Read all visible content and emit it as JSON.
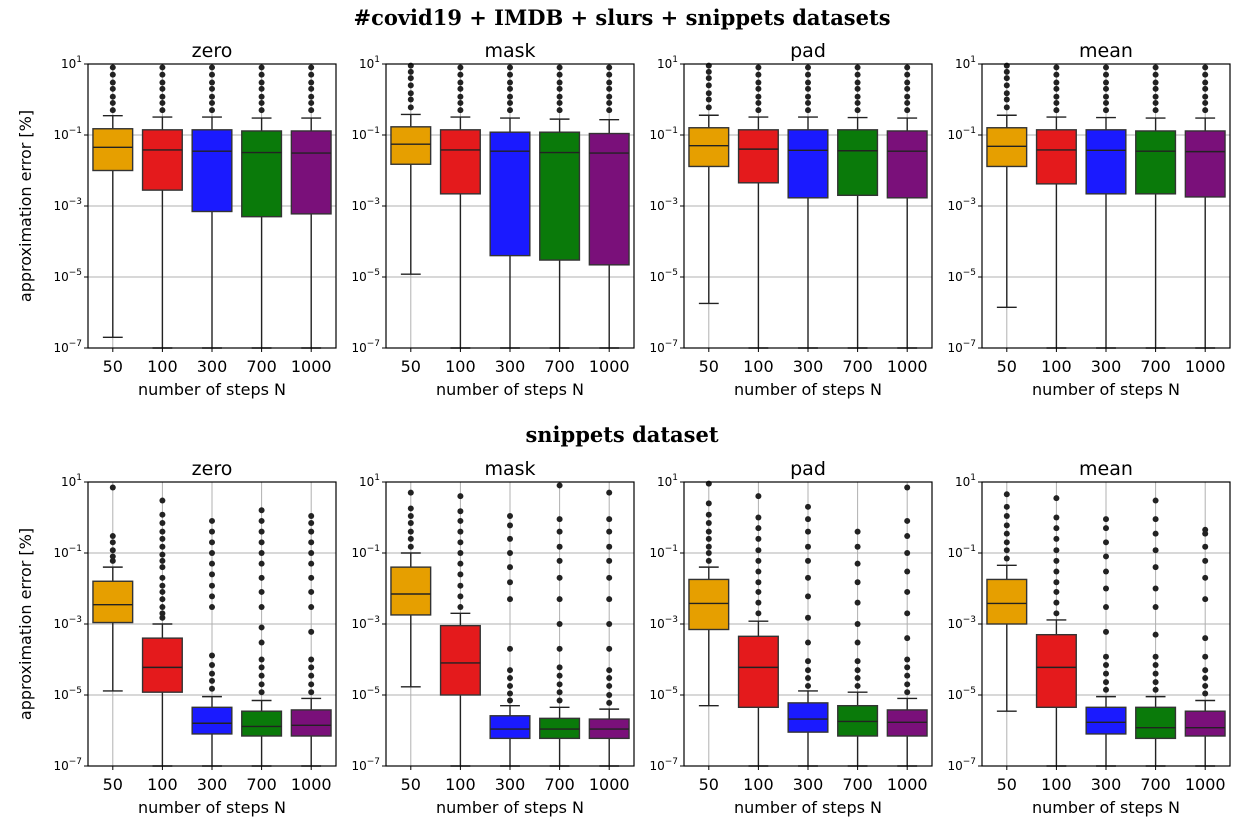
{
  "titles": {
    "top": "#covid19 + IMDB + slurs + snippets datasets",
    "bottom": "snippets dataset"
  },
  "chart_data": [
    {
      "type": "box",
      "row": "top",
      "title": "zero",
      "xlabel": "number of steps N",
      "ylabel": "approximation error [%]",
      "yscale": "log",
      "ylim": [
        1e-07,
        10
      ],
      "yticks": [
        "10^1",
        "10^-1",
        "10^-3",
        "10^-5",
        "10^-7"
      ],
      "grid": true,
      "categories": [
        "50",
        "100",
        "300",
        "700",
        "1000"
      ],
      "colors": [
        "#e69f00",
        "#e41a1c",
        "#1a1aff",
        "#0a7a0a",
        "#7a107a"
      ],
      "boxes": [
        {
          "whislo": 2e-07,
          "q1": 0.01,
          "med": 0.045,
          "q3": 0.15,
          "whishi": 0.35,
          "outliers": [
            0.5,
            0.8,
            1.2,
            2,
            3,
            5,
            8
          ]
        },
        {
          "whislo": 1e-07,
          "q1": 0.0028,
          "med": 0.038,
          "q3": 0.14,
          "whishi": 0.32,
          "outliers": [
            0.5,
            0.8,
            1.2,
            2,
            3,
            5,
            8
          ]
        },
        {
          "whislo": 1e-07,
          "q1": 0.0007,
          "med": 0.035,
          "q3": 0.14,
          "whishi": 0.32,
          "outliers": [
            0.5,
            0.8,
            1.2,
            2,
            3,
            5,
            8
          ]
        },
        {
          "whislo": 1e-07,
          "q1": 0.0005,
          "med": 0.032,
          "q3": 0.13,
          "whishi": 0.3,
          "outliers": [
            0.5,
            0.8,
            1.2,
            2,
            3,
            5,
            8
          ]
        },
        {
          "whislo": 1e-07,
          "q1": 0.0006,
          "med": 0.031,
          "q3": 0.13,
          "whishi": 0.3,
          "outliers": [
            0.5,
            0.8,
            1.2,
            2,
            3,
            5,
            8
          ]
        }
      ]
    },
    {
      "type": "box",
      "row": "top",
      "title": "mask",
      "xlabel": "number of steps N",
      "ylabel": "",
      "yscale": "log",
      "ylim": [
        1e-07,
        10
      ],
      "yticks": [
        "10^1",
        "10^-1",
        "10^-3",
        "10^-5",
        "10^-7"
      ],
      "grid": true,
      "categories": [
        "50",
        "100",
        "300",
        "700",
        "1000"
      ],
      "colors": [
        "#e69f00",
        "#e41a1c",
        "#1a1aff",
        "#0a7a0a",
        "#7a107a"
      ],
      "boxes": [
        {
          "whislo": 1.2e-05,
          "q1": 0.015,
          "med": 0.055,
          "q3": 0.17,
          "whishi": 0.38,
          "outliers": [
            0.6,
            1,
            1.5,
            2.5,
            4,
            6,
            9
          ]
        },
        {
          "whislo": 1e-07,
          "q1": 0.0022,
          "med": 0.038,
          "q3": 0.14,
          "whishi": 0.32,
          "outliers": [
            0.5,
            0.8,
            1.2,
            2,
            3,
            5,
            8
          ]
        },
        {
          "whislo": 1e-07,
          "q1": 4e-05,
          "med": 0.035,
          "q3": 0.12,
          "whishi": 0.3,
          "outliers": [
            0.5,
            0.8,
            1.2,
            2,
            3,
            5,
            8
          ]
        },
        {
          "whislo": 1e-07,
          "q1": 3e-05,
          "med": 0.032,
          "q3": 0.12,
          "whishi": 0.28,
          "outliers": [
            0.5,
            0.8,
            1.2,
            2,
            3,
            5,
            8
          ]
        },
        {
          "whislo": 1e-07,
          "q1": 2.2e-05,
          "med": 0.031,
          "q3": 0.11,
          "whishi": 0.27,
          "outliers": [
            0.5,
            0.8,
            1.2,
            2,
            3,
            5,
            8
          ]
        }
      ]
    },
    {
      "type": "box",
      "row": "top",
      "title": "pad",
      "xlabel": "number of steps N",
      "ylabel": "",
      "yscale": "log",
      "ylim": [
        1e-07,
        10
      ],
      "yticks": [
        "10^1",
        "10^-1",
        "10^-3",
        "10^-5",
        "10^-7"
      ],
      "grid": true,
      "categories": [
        "50",
        "100",
        "300",
        "700",
        "1000"
      ],
      "colors": [
        "#e69f00",
        "#e41a1c",
        "#1a1aff",
        "#0a7a0a",
        "#7a107a"
      ],
      "boxes": [
        {
          "whislo": 1.8e-06,
          "q1": 0.013,
          "med": 0.05,
          "q3": 0.16,
          "whishi": 0.36,
          "outliers": [
            0.6,
            1,
            1.5,
            2.5,
            4,
            6,
            9
          ]
        },
        {
          "whislo": 1e-07,
          "q1": 0.0045,
          "med": 0.04,
          "q3": 0.14,
          "whishi": 0.32,
          "outliers": [
            0.5,
            0.8,
            1.2,
            2,
            3,
            5,
            8
          ]
        },
        {
          "whislo": 1e-07,
          "q1": 0.0017,
          "med": 0.037,
          "q3": 0.14,
          "whishi": 0.32,
          "outliers": [
            0.5,
            0.8,
            1.2,
            2,
            3,
            5,
            8
          ]
        },
        {
          "whislo": 1e-07,
          "q1": 0.002,
          "med": 0.036,
          "q3": 0.14,
          "whishi": 0.31,
          "outliers": [
            0.5,
            0.8,
            1.2,
            2,
            3,
            5,
            8
          ]
        },
        {
          "whislo": 1e-07,
          "q1": 0.0017,
          "med": 0.035,
          "q3": 0.13,
          "whishi": 0.3,
          "outliers": [
            0.5,
            0.8,
            1.2,
            2,
            3,
            5,
            8
          ]
        }
      ]
    },
    {
      "type": "box",
      "row": "top",
      "title": "mean",
      "xlabel": "number of steps N",
      "ylabel": "",
      "yscale": "log",
      "ylim": [
        1e-07,
        10
      ],
      "yticks": [
        "10^1",
        "10^-1",
        "10^-3",
        "10^-5",
        "10^-7"
      ],
      "grid": true,
      "categories": [
        "50",
        "100",
        "300",
        "700",
        "1000"
      ],
      "colors": [
        "#e69f00",
        "#e41a1c",
        "#1a1aff",
        "#0a7a0a",
        "#7a107a"
      ],
      "boxes": [
        {
          "whislo": 1.4e-06,
          "q1": 0.013,
          "med": 0.048,
          "q3": 0.16,
          "whishi": 0.36,
          "outliers": [
            0.6,
            1,
            1.5,
            2.5,
            4,
            6,
            9
          ]
        },
        {
          "whislo": 1e-07,
          "q1": 0.0042,
          "med": 0.038,
          "q3": 0.14,
          "whishi": 0.32,
          "outliers": [
            0.5,
            0.8,
            1.2,
            2,
            3,
            5,
            8
          ]
        },
        {
          "whislo": 1e-07,
          "q1": 0.0022,
          "med": 0.037,
          "q3": 0.14,
          "whishi": 0.31,
          "outliers": [
            0.5,
            0.8,
            1.2,
            2,
            3,
            5,
            8
          ]
        },
        {
          "whislo": 1e-07,
          "q1": 0.0022,
          "med": 0.035,
          "q3": 0.13,
          "whishi": 0.3,
          "outliers": [
            0.5,
            0.8,
            1.2,
            2,
            3,
            5,
            8
          ]
        },
        {
          "whislo": 1e-07,
          "q1": 0.0018,
          "med": 0.034,
          "q3": 0.13,
          "whishi": 0.3,
          "outliers": [
            0.5,
            0.8,
            1.2,
            2,
            3,
            5,
            8
          ]
        }
      ]
    },
    {
      "type": "box",
      "row": "bottom",
      "title": "zero",
      "xlabel": "number of steps N",
      "ylabel": "approximation error [%]",
      "yscale": "log",
      "ylim": [
        1e-07,
        10
      ],
      "yticks": [
        "10^1",
        "10^-1",
        "10^-3",
        "10^-5",
        "10^-7"
      ],
      "grid": true,
      "categories": [
        "50",
        "100",
        "300",
        "700",
        "1000"
      ],
      "colors": [
        "#e69f00",
        "#e41a1c",
        "#1a1aff",
        "#0a7a0a",
        "#7a107a"
      ],
      "boxes": [
        {
          "whislo": 1.3e-05,
          "q1": 0.0011,
          "med": 0.0035,
          "q3": 0.016,
          "whishi": 0.04,
          "outliers": [
            0.06,
            0.08,
            0.12,
            0.2,
            0.3,
            7
          ]
        },
        {
          "whislo": 1e-07,
          "q1": 1.2e-05,
          "med": 6e-05,
          "q3": 0.0004,
          "whishi": 0.001,
          "outliers": [
            0.0015,
            0.002,
            0.003,
            0.005,
            0.008,
            0.012,
            0.02,
            0.04,
            0.06,
            0.09,
            0.15,
            0.25,
            0.4,
            0.7,
            1.2,
            3
          ]
        },
        {
          "whislo": 1e-07,
          "q1": 8e-07,
          "med": 1.6e-06,
          "q3": 4.5e-06,
          "whishi": 9e-06,
          "outliers": [
            1.5e-05,
            2.5e-05,
            4e-05,
            7e-05,
            0.00013,
            0.003,
            0.006,
            0.012,
            0.025,
            0.05,
            0.1,
            0.2,
            0.4,
            0.8
          ]
        },
        {
          "whislo": 1e-07,
          "q1": 7e-07,
          "med": 1.3e-06,
          "q3": 3.5e-06,
          "whishi": 7e-06,
          "outliers": [
            1.2e-05,
            2e-05,
            3.5e-05,
            6e-05,
            0.0001,
            0.0003,
            0.0008,
            0.003,
            0.008,
            0.02,
            0.05,
            0.1,
            0.2,
            0.4,
            0.8,
            1.6
          ]
        },
        {
          "whislo": 1e-07,
          "q1": 7e-07,
          "med": 1.4e-06,
          "q3": 3.8e-06,
          "whishi": 8e-06,
          "outliers": [
            1.2e-05,
            2e-05,
            3.5e-05,
            6e-05,
            0.0001,
            0.0006,
            0.003,
            0.008,
            0.02,
            0.05,
            0.1,
            0.2,
            0.4,
            0.7,
            1.1
          ]
        }
      ]
    },
    {
      "type": "box",
      "row": "bottom",
      "title": "mask",
      "xlabel": "number of steps N",
      "ylabel": "",
      "yscale": "log",
      "ylim": [
        1e-07,
        10
      ],
      "yticks": [
        "10^1",
        "10^-1",
        "10^-3",
        "10^-5",
        "10^-7"
      ],
      "grid": true,
      "categories": [
        "50",
        "100",
        "300",
        "700",
        "1000"
      ],
      "colors": [
        "#e69f00",
        "#e41a1c",
        "#1a1aff",
        "#0a7a0a",
        "#7a107a"
      ],
      "boxes": [
        {
          "whislo": 1.7e-05,
          "q1": 0.0018,
          "med": 0.007,
          "q3": 0.04,
          "whishi": 0.1,
          "outliers": [
            0.15,
            0.25,
            0.4,
            0.7,
            1.1,
            1.8,
            5
          ]
        },
        {
          "whislo": 1e-07,
          "q1": 1e-05,
          "med": 8e-05,
          "q3": 0.0009,
          "whishi": 0.002,
          "outliers": [
            0.003,
            0.006,
            0.012,
            0.025,
            0.05,
            0.1,
            0.2,
            0.4,
            0.8,
            1.5,
            4
          ]
        },
        {
          "whislo": 1e-07,
          "q1": 6e-07,
          "med": 1.1e-06,
          "q3": 2.6e-06,
          "whishi": 5e-06,
          "outliers": [
            7e-06,
            1.1e-05,
            1.8e-05,
            3e-05,
            5e-05,
            0.0002,
            0.005,
            0.015,
            0.04,
            0.1,
            0.25,
            0.6,
            1.1
          ]
        },
        {
          "whislo": 1e-07,
          "q1": 6e-07,
          "med": 1.1e-06,
          "q3": 2.2e-06,
          "whishi": 4.5e-06,
          "outliers": [
            7e-06,
            1.2e-05,
            2e-05,
            3.5e-05,
            6e-05,
            0.0002,
            0.001,
            0.005,
            0.02,
            0.06,
            0.15,
            0.4,
            0.9,
            8
          ]
        },
        {
          "whislo": 1e-07,
          "q1": 6e-07,
          "med": 1.1e-06,
          "q3": 2.1e-06,
          "whishi": 4e-06,
          "outliers": [
            6e-06,
            1e-05,
            1.8e-05,
            3e-05,
            5e-05,
            0.0002,
            0.001,
            0.005,
            0.02,
            0.06,
            0.15,
            0.4,
            0.9,
            5
          ]
        }
      ]
    },
    {
      "type": "box",
      "row": "bottom",
      "title": "pad",
      "xlabel": "number of steps N",
      "ylabel": "",
      "yscale": "log",
      "ylim": [
        1e-07,
        10
      ],
      "yticks": [
        "10^1",
        "10^-1",
        "10^-3",
        "10^-5",
        "10^-7"
      ],
      "grid": true,
      "categories": [
        "50",
        "100",
        "300",
        "700",
        "1000"
      ],
      "colors": [
        "#e69f00",
        "#e41a1c",
        "#1a1aff",
        "#0a7a0a",
        "#7a107a"
      ],
      "boxes": [
        {
          "whislo": 5e-06,
          "q1": 0.0007,
          "med": 0.0038,
          "q3": 0.018,
          "whishi": 0.04,
          "outliers": [
            0.06,
            0.1,
            0.15,
            0.25,
            0.4,
            0.7,
            1.2,
            2.5,
            9
          ]
        },
        {
          "whislo": 1e-07,
          "q1": 4.5e-06,
          "med": 6e-05,
          "q3": 0.00045,
          "whishi": 0.0012,
          "outliers": [
            0.002,
            0.004,
            0.008,
            0.015,
            0.03,
            0.06,
            0.12,
            0.25,
            0.5,
            1,
            4
          ]
        },
        {
          "whislo": 1e-07,
          "q1": 9e-07,
          "med": 2.1e-06,
          "q3": 6e-06,
          "whishi": 1.3e-05,
          "outliers": [
            1.8e-05,
            3e-05,
            5e-05,
            9e-05,
            0.0003,
            0.0015,
            0.006,
            0.02,
            0.06,
            0.15,
            0.4,
            0.9,
            2
          ]
        },
        {
          "whislo": 1e-07,
          "q1": 7e-07,
          "med": 1.8e-06,
          "q3": 5e-06,
          "whishi": 1.2e-05,
          "outliers": [
            1.8e-05,
            3e-05,
            5e-05,
            9e-05,
            0.0003,
            0.001,
            0.004,
            0.015,
            0.05,
            0.15,
            0.4
          ]
        },
        {
          "whislo": 1e-07,
          "q1": 7e-07,
          "med": 1.7e-06,
          "q3": 3.8e-06,
          "whishi": 8e-06,
          "outliers": [
            1.2e-05,
            2e-05,
            3.5e-05,
            6e-05,
            0.0001,
            0.0004,
            0.002,
            0.008,
            0.03,
            0.1,
            0.3,
            0.8,
            7
          ]
        }
      ]
    },
    {
      "type": "box",
      "row": "bottom",
      "title": "mean",
      "xlabel": "number of steps N",
      "ylabel": "",
      "yscale": "log",
      "ylim": [
        1e-07,
        10
      ],
      "yticks": [
        "10^1",
        "10^-1",
        "10^-3",
        "10^-5",
        "10^-7"
      ],
      "grid": true,
      "categories": [
        "50",
        "100",
        "300",
        "700",
        "1000"
      ],
      "colors": [
        "#e69f00",
        "#e41a1c",
        "#1a1aff",
        "#0a7a0a",
        "#7a107a"
      ],
      "boxes": [
        {
          "whislo": 3.5e-06,
          "q1": 0.001,
          "med": 0.0038,
          "q3": 0.018,
          "whishi": 0.045,
          "outliers": [
            0.07,
            0.12,
            0.2,
            0.35,
            0.6,
            1.1,
            2,
            4.5
          ]
        },
        {
          "whislo": 1e-07,
          "q1": 4.5e-06,
          "med": 6e-05,
          "q3": 0.0005,
          "whishi": 0.0013,
          "outliers": [
            0.002,
            0.004,
            0.008,
            0.015,
            0.03,
            0.06,
            0.12,
            0.25,
            0.5,
            1,
            3.5
          ]
        },
        {
          "whislo": 1e-07,
          "q1": 8e-07,
          "med": 1.7e-06,
          "q3": 4.5e-06,
          "whishi": 9e-06,
          "outliers": [
            1.4e-05,
            2.3e-05,
            4e-05,
            7e-05,
            0.00012,
            0.0006,
            0.003,
            0.01,
            0.03,
            0.08,
            0.2,
            0.5,
            0.9
          ]
        },
        {
          "whislo": 1e-07,
          "q1": 6e-07,
          "med": 1.2e-06,
          "q3": 4.5e-06,
          "whishi": 9e-06,
          "outliers": [
            1.4e-05,
            2.3e-05,
            4e-05,
            7e-05,
            0.00012,
            0.0005,
            0.003,
            0.01,
            0.04,
            0.12,
            0.35,
            0.9,
            3
          ]
        },
        {
          "whislo": 1e-07,
          "q1": 7e-07,
          "med": 1.2e-06,
          "q3": 3.5e-06,
          "whishi": 7e-06,
          "outliers": [
            1.1e-05,
            1.8e-05,
            3e-05,
            5e-05,
            0.00012,
            0.0004,
            0.005,
            0.02,
            0.06,
            0.15,
            0.35,
            0.45
          ]
        }
      ]
    }
  ]
}
